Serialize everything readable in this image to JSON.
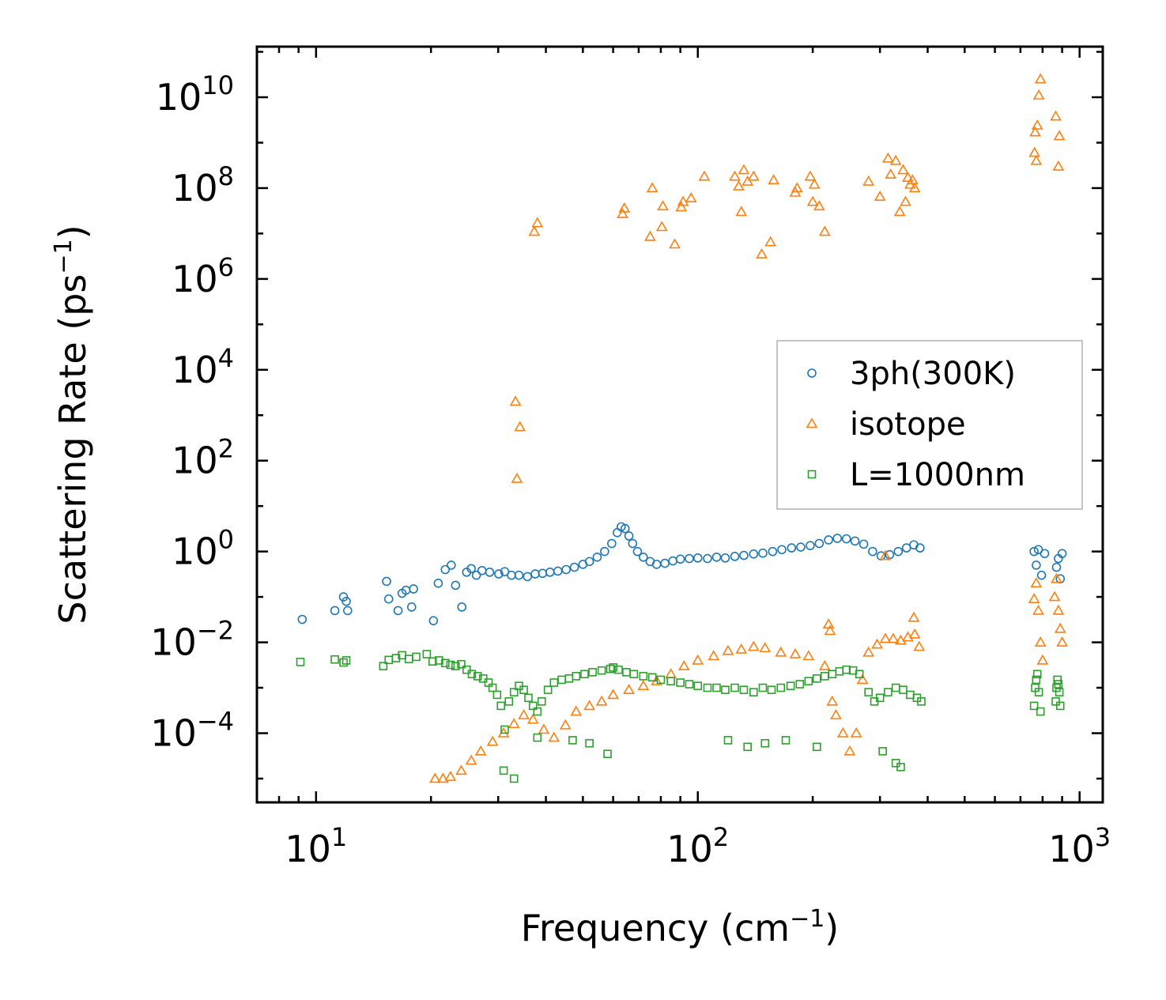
{
  "chart_data": {
    "type": "scatter",
    "title": "",
    "xlabel": "Frequency (cm",
    "xlabel_sup": "−1",
    "xlabel_end": ")",
    "ylabel": "Scattering Rate (ps",
    "ylabel_sup": "−1",
    "ylabel_end": ")",
    "xscale": "log",
    "yscale": "log",
    "xlim": [
      7.0,
      1150
    ],
    "ylim": [
      3e-06,
      130000000000
    ],
    "x_ticks": [
      {
        "value": 10,
        "base": "10",
        "exp": "1"
      },
      {
        "value": 100,
        "base": "10",
        "exp": "2"
      },
      {
        "value": 1000,
        "base": "10",
        "exp": "3"
      }
    ],
    "y_ticks": [
      {
        "value": 0.0001,
        "base": "10",
        "exp": "−4"
      },
      {
        "value": 0.01,
        "base": "10",
        "exp": "−2"
      },
      {
        "value": 1,
        "base": "10",
        "exp": "0"
      },
      {
        "value": 100,
        "base": "10",
        "exp": "2"
      },
      {
        "value": 10000,
        "base": "10",
        "exp": "4"
      },
      {
        "value": 1000000,
        "base": "10",
        "exp": "6"
      },
      {
        "value": 100000000,
        "base": "10",
        "exp": "8"
      },
      {
        "value": 10000000000,
        "base": "10",
        "exp": "10"
      }
    ],
    "legend_position": "center-right",
    "series": [
      {
        "name": "3ph(300K)",
        "marker": "circle",
        "color": "#1f77b4",
        "x": [
          9.2,
          11.2,
          11.8,
          12.0,
          12.1,
          15.3,
          15.5,
          16.4,
          16.8,
          17.2,
          17.8,
          18.0,
          20.3,
          20.9,
          21.8,
          22.6,
          23.2,
          24.1,
          24.8,
          25.5,
          26.3,
          27.2,
          28.5,
          30.1,
          31.2,
          32.5,
          34.0,
          35.8,
          37.5,
          39.2,
          41.0,
          43.0,
          45.2,
          47.5,
          50.0,
          52.0,
          54.5,
          57.0,
          59.5,
          61.5,
          63.0,
          64.5,
          66.0,
          67.5,
          69.5,
          72.0,
          75.0,
          78.0,
          82.0,
          86.0,
          90.0,
          95.0,
          100.0,
          106.0,
          112.0,
          118.0,
          125.0,
          132.0,
          140.0,
          148.0,
          157.0,
          166.0,
          176.0,
          186.0,
          197.0,
          208.0,
          220.0,
          232.0,
          245.0,
          258.0,
          272.0,
          287.0,
          302.0,
          318.0,
          335.0,
          352.0,
          368.0,
          382.0,
          760.0,
          770.0,
          780.0,
          795.0,
          810.0,
          870.0,
          880.0,
          890.0,
          900.0
        ],
        "y": [
          0.032,
          0.05,
          0.1,
          0.08,
          0.05,
          0.22,
          0.09,
          0.05,
          0.12,
          0.14,
          0.06,
          0.15,
          0.03,
          0.2,
          0.4,
          0.5,
          0.18,
          0.06,
          0.35,
          0.42,
          0.3,
          0.38,
          0.35,
          0.32,
          0.36,
          0.3,
          0.3,
          0.28,
          0.32,
          0.33,
          0.35,
          0.37,
          0.4,
          0.45,
          0.52,
          0.6,
          0.75,
          1.0,
          1.5,
          2.6,
          3.5,
          3.2,
          2.2,
          1.5,
          1.0,
          0.75,
          0.6,
          0.52,
          0.55,
          0.62,
          0.68,
          0.7,
          0.72,
          0.7,
          0.75,
          0.72,
          0.78,
          0.82,
          0.88,
          0.92,
          1.0,
          1.1,
          1.2,
          1.25,
          1.35,
          1.5,
          1.8,
          1.95,
          1.9,
          1.7,
          1.45,
          1.0,
          0.8,
          0.85,
          1.0,
          1.2,
          1.4,
          1.2,
          1.0,
          0.5,
          1.1,
          0.3,
          0.9,
          0.45,
          0.7,
          0.25,
          0.9
        ]
      },
      {
        "name": "isotope",
        "marker": "triangle",
        "color": "#ff7f0e",
        "x": [
          33.3,
          33.6,
          34.2,
          37.3,
          38.0,
          63.5,
          64.2,
          75.0,
          76.0,
          80.5,
          81.0,
          87.0,
          90.5,
          91.5,
          96.0,
          104.0,
          125.0,
          128.0,
          130.0,
          132.0,
          135.0,
          140.0,
          147.0,
          155.0,
          158.0,
          180.0,
          182.0,
          197.0,
          200.0,
          202.0,
          208.0,
          215.0,
          280.0,
          300.0,
          315.0,
          320.0,
          330.0,
          338.0,
          345.0,
          350.0,
          355.0,
          360.0,
          365.0,
          370.0,
          762.0,
          765.0,
          770.0,
          775.0,
          782.0,
          790.0,
          866.0,
          880.0,
          885.0,
          20.5,
          21.5,
          22.5,
          24.0,
          25.5,
          27.0,
          29.0,
          31.0,
          33.0,
          35.0,
          37.0,
          39.5,
          42.0,
          45.0,
          48.0,
          52.0,
          56.0,
          60.0,
          66.0,
          72.0,
          78.0,
          85.0,
          92.0,
          100.0,
          110.0,
          120.0,
          130.0,
          140.0,
          150.0,
          165.0,
          180.0,
          195.0,
          215.0,
          225.0,
          230.0,
          240.0,
          250.0,
          260.0,
          270.0,
          280.0,
          295.0,
          310.0,
          325.0,
          340.0,
          355.0,
          370.0,
          380.0,
          760.0,
          770.0,
          780.0,
          790.0,
          800.0,
          860.0,
          870.0,
          880.0,
          890.0,
          900.0,
          220.0,
          222.0,
          310.0,
          368.0
        ],
        "y": [
          2000.0,
          40.0,
          550.0,
          11000000.0,
          17000000.0,
          27000000.0,
          36000000.0,
          8500000.0,
          100000000.0,
          14000000.0,
          40000000.0,
          5800000.0,
          38000000.0,
          50000000.0,
          60000000.0,
          180000000.0,
          180000000.0,
          110000000.0,
          30000000.0,
          250000000.0,
          140000000.0,
          180000000.0,
          3500000.0,
          6500000.0,
          150000000.0,
          80000000.0,
          100000000.0,
          180000000.0,
          50000000.0,
          120000000.0,
          40000000.0,
          11000000.0,
          140000000.0,
          65000000.0,
          450000000.0,
          200000000.0,
          400000000.0,
          30000000.0,
          250000000.0,
          50000000.0,
          170000000.0,
          120000000.0,
          150000000.0,
          100000000.0,
          600000000.0,
          1700000000.0,
          400000000.0,
          2400000000.0,
          11000000000.0,
          25000000000.0,
          3800000000.0,
          300000000.0,
          1400000000.0,
          1e-05,
          1e-05,
          1.1e-05,
          1.5e-05,
          2.5e-05,
          4e-05,
          6.5e-05,
          0.0001,
          0.00016,
          0.00025,
          0.0002,
          0.00012,
          8e-05,
          0.00015,
          0.0003,
          0.0004,
          0.0005,
          0.0007,
          0.0009,
          0.0011,
          0.0014,
          0.002,
          0.003,
          0.004,
          0.005,
          0.0065,
          0.007,
          0.008,
          0.0075,
          0.006,
          0.0055,
          0.005,
          0.003,
          0.0005,
          0.00025,
          0.0001,
          4e-05,
          0.0001,
          0.0015,
          0.006,
          0.009,
          0.012,
          0.012,
          0.011,
          0.013,
          0.015,
          0.008,
          0.09,
          0.2,
          0.05,
          0.01,
          0.004,
          0.1,
          0.25,
          0.05,
          0.02,
          0.01,
          0.025,
          0.018,
          0.8,
          0.035
        ]
      },
      {
        "name": "L=1000nm",
        "marker": "square",
        "color": "#2ca02c",
        "x": [
          9.1,
          11.2,
          11.8,
          12.0,
          15.0,
          15.5,
          16.2,
          16.8,
          17.5,
          18.3,
          19.5,
          20.2,
          21.0,
          21.8,
          22.5,
          23.2,
          24.0,
          24.8,
          25.6,
          26.5,
          27.4,
          28.3,
          29.0,
          29.8,
          30.5,
          31.2,
          32.0,
          33.0,
          34.0,
          35.0,
          36.0,
          37.0,
          38.0,
          39.0,
          40.5,
          42.0,
          44.0,
          46.0,
          48.0,
          50.5,
          53.0,
          56.0,
          59.0,
          60.0,
          62.0,
          65.0,
          68.0,
          72.0,
          76.0,
          80.0,
          85.0,
          90.0,
          95.0,
          100.0,
          106.0,
          112.0,
          118.0,
          125.0,
          132.0,
          140.0,
          148.0,
          156.0,
          165.0,
          175.0,
          185.0,
          195.0,
          205.0,
          215.0,
          225.0,
          235.0,
          245.0,
          255.0,
          265.0,
          280.0,
          290.0,
          300.0,
          315.0,
          330.0,
          345.0,
          360.0,
          375.0,
          385.0,
          760.0,
          765.0,
          770.0,
          775.0,
          782.0,
          790.0,
          866.0,
          870.0,
          875.0,
          880.0,
          885.0,
          890.0,
          58.0,
          52.0,
          47.0,
          120.0,
          135.0,
          150.0,
          170.0,
          205.0,
          305.0,
          330.0,
          340.0,
          38.0,
          31.0,
          33.0
        ],
        "y": [
          0.0037,
          0.0042,
          0.0036,
          0.004,
          0.003,
          0.0041,
          0.0045,
          0.0052,
          0.0043,
          0.0048,
          0.0055,
          0.0038,
          0.004,
          0.0035,
          0.0032,
          0.003,
          0.0033,
          0.0025,
          0.002,
          0.0018,
          0.0016,
          0.0013,
          0.001,
          0.0007,
          0.0004,
          0.00012,
          0.0005,
          0.0008,
          0.0011,
          0.0009,
          0.0006,
          0.0004,
          0.0003,
          0.0005,
          0.0009,
          0.0013,
          0.0015,
          0.0016,
          0.0018,
          0.002,
          0.0022,
          0.0024,
          0.0026,
          0.0028,
          0.0025,
          0.0022,
          0.002,
          0.0018,
          0.0017,
          0.0015,
          0.0014,
          0.0013,
          0.0012,
          0.0011,
          0.001,
          0.001,
          0.0009,
          0.001,
          0.0009,
          0.0008,
          0.001,
          0.0009,
          0.001,
          0.0011,
          0.0012,
          0.0014,
          0.0016,
          0.0018,
          0.002,
          0.0023,
          0.0025,
          0.0024,
          0.002,
          0.0008,
          0.0005,
          0.0006,
          0.0008,
          0.001,
          0.0009,
          0.0007,
          0.0006,
          0.0005,
          0.0004,
          0.001,
          0.0015,
          0.002,
          0.0008,
          0.0003,
          0.0005,
          0.001,
          0.0015,
          0.0012,
          0.0008,
          0.0004,
          3.5e-05,
          6e-05,
          7e-05,
          7e-05,
          5e-05,
          6e-05,
          7e-05,
          5e-05,
          4e-05,
          2.2e-05,
          1.8e-05,
          8e-05,
          1.5e-05,
          1e-05
        ]
      }
    ]
  }
}
